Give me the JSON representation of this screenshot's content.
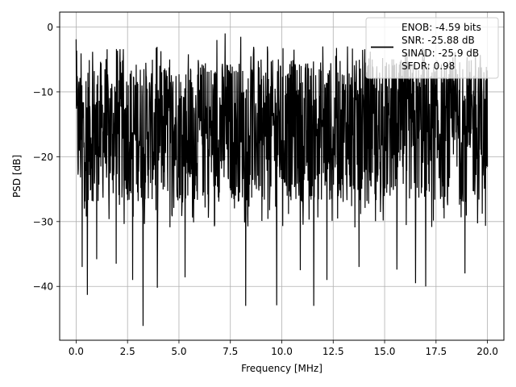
{
  "chart_data": {
    "type": "line",
    "xlabel": "Frequency [MHz]",
    "ylabel": "PSD [dB]",
    "xlim": [
      -0.8,
      20.8
    ],
    "ylim": [
      -48.3,
      2.3
    ],
    "xticks": [
      0.0,
      2.5,
      5.0,
      7.5,
      10.0,
      12.5,
      15.0,
      17.5,
      20.0
    ],
    "xtick_labels": [
      "0.0",
      "2.5",
      "5.0",
      "7.5",
      "10.0",
      "12.5",
      "15.0",
      "17.5",
      "20.0"
    ],
    "yticks": [
      0,
      -10,
      -20,
      -30,
      -40
    ],
    "ytick_labels": [
      "0",
      "−10",
      "−20",
      "−30",
      "−40"
    ],
    "grid": true,
    "legend": {
      "placement": "top-right",
      "entries": [
        "ENOB: -4.59 bits",
        "SNR: -25.88 dB",
        "SINAD: -25.9 dB",
        "SFDR: 0.98"
      ]
    },
    "series": [
      {
        "color": "#000000",
        "description": "noise-like PSD trace from 0 to 20 MHz, mostly between -30 and -3 dB",
        "x_range": [
          0,
          20
        ],
        "typical_band": [
          -27,
          -5
        ],
        "peaks": [
          {
            "x": 0.0,
            "y": -1.9
          },
          {
            "x": 1.55,
            "y": -8.5
          },
          {
            "x": 3.3,
            "y": -6.5
          },
          {
            "x": 4.55,
            "y": -5.0
          },
          {
            "x": 6.85,
            "y": -2.0
          },
          {
            "x": 7.25,
            "y": -1.0
          },
          {
            "x": 8.0,
            "y": -1.5
          },
          {
            "x": 9.3,
            "y": -3.0
          },
          {
            "x": 10.6,
            "y": -3.5
          },
          {
            "x": 12.0,
            "y": -3.0
          },
          {
            "x": 13.2,
            "y": -3.0
          },
          {
            "x": 14.3,
            "y": -3.8
          },
          {
            "x": 16.9,
            "y": -5.0
          },
          {
            "x": 18.8,
            "y": -6.5
          }
        ],
        "troughs": [
          {
            "x": 0.3,
            "y": -37.0
          },
          {
            "x": 0.55,
            "y": -41.3
          },
          {
            "x": 1.0,
            "y": -35.8
          },
          {
            "x": 1.95,
            "y": -36.5
          },
          {
            "x": 2.75,
            "y": -39.0
          },
          {
            "x": 3.25,
            "y": -46.1
          },
          {
            "x": 3.95,
            "y": -40.2
          },
          {
            "x": 5.3,
            "y": -38.6
          },
          {
            "x": 8.25,
            "y": -43.0
          },
          {
            "x": 9.75,
            "y": -42.9
          },
          {
            "x": 10.9,
            "y": -37.5
          },
          {
            "x": 11.55,
            "y": -43.0
          },
          {
            "x": 12.2,
            "y": -39.0
          },
          {
            "x": 13.75,
            "y": -37.0
          },
          {
            "x": 15.6,
            "y": -37.4
          },
          {
            "x": 16.5,
            "y": -39.5
          },
          {
            "x": 17.0,
            "y": -40.0
          },
          {
            "x": 18.9,
            "y": -38.0
          }
        ]
      }
    ]
  }
}
